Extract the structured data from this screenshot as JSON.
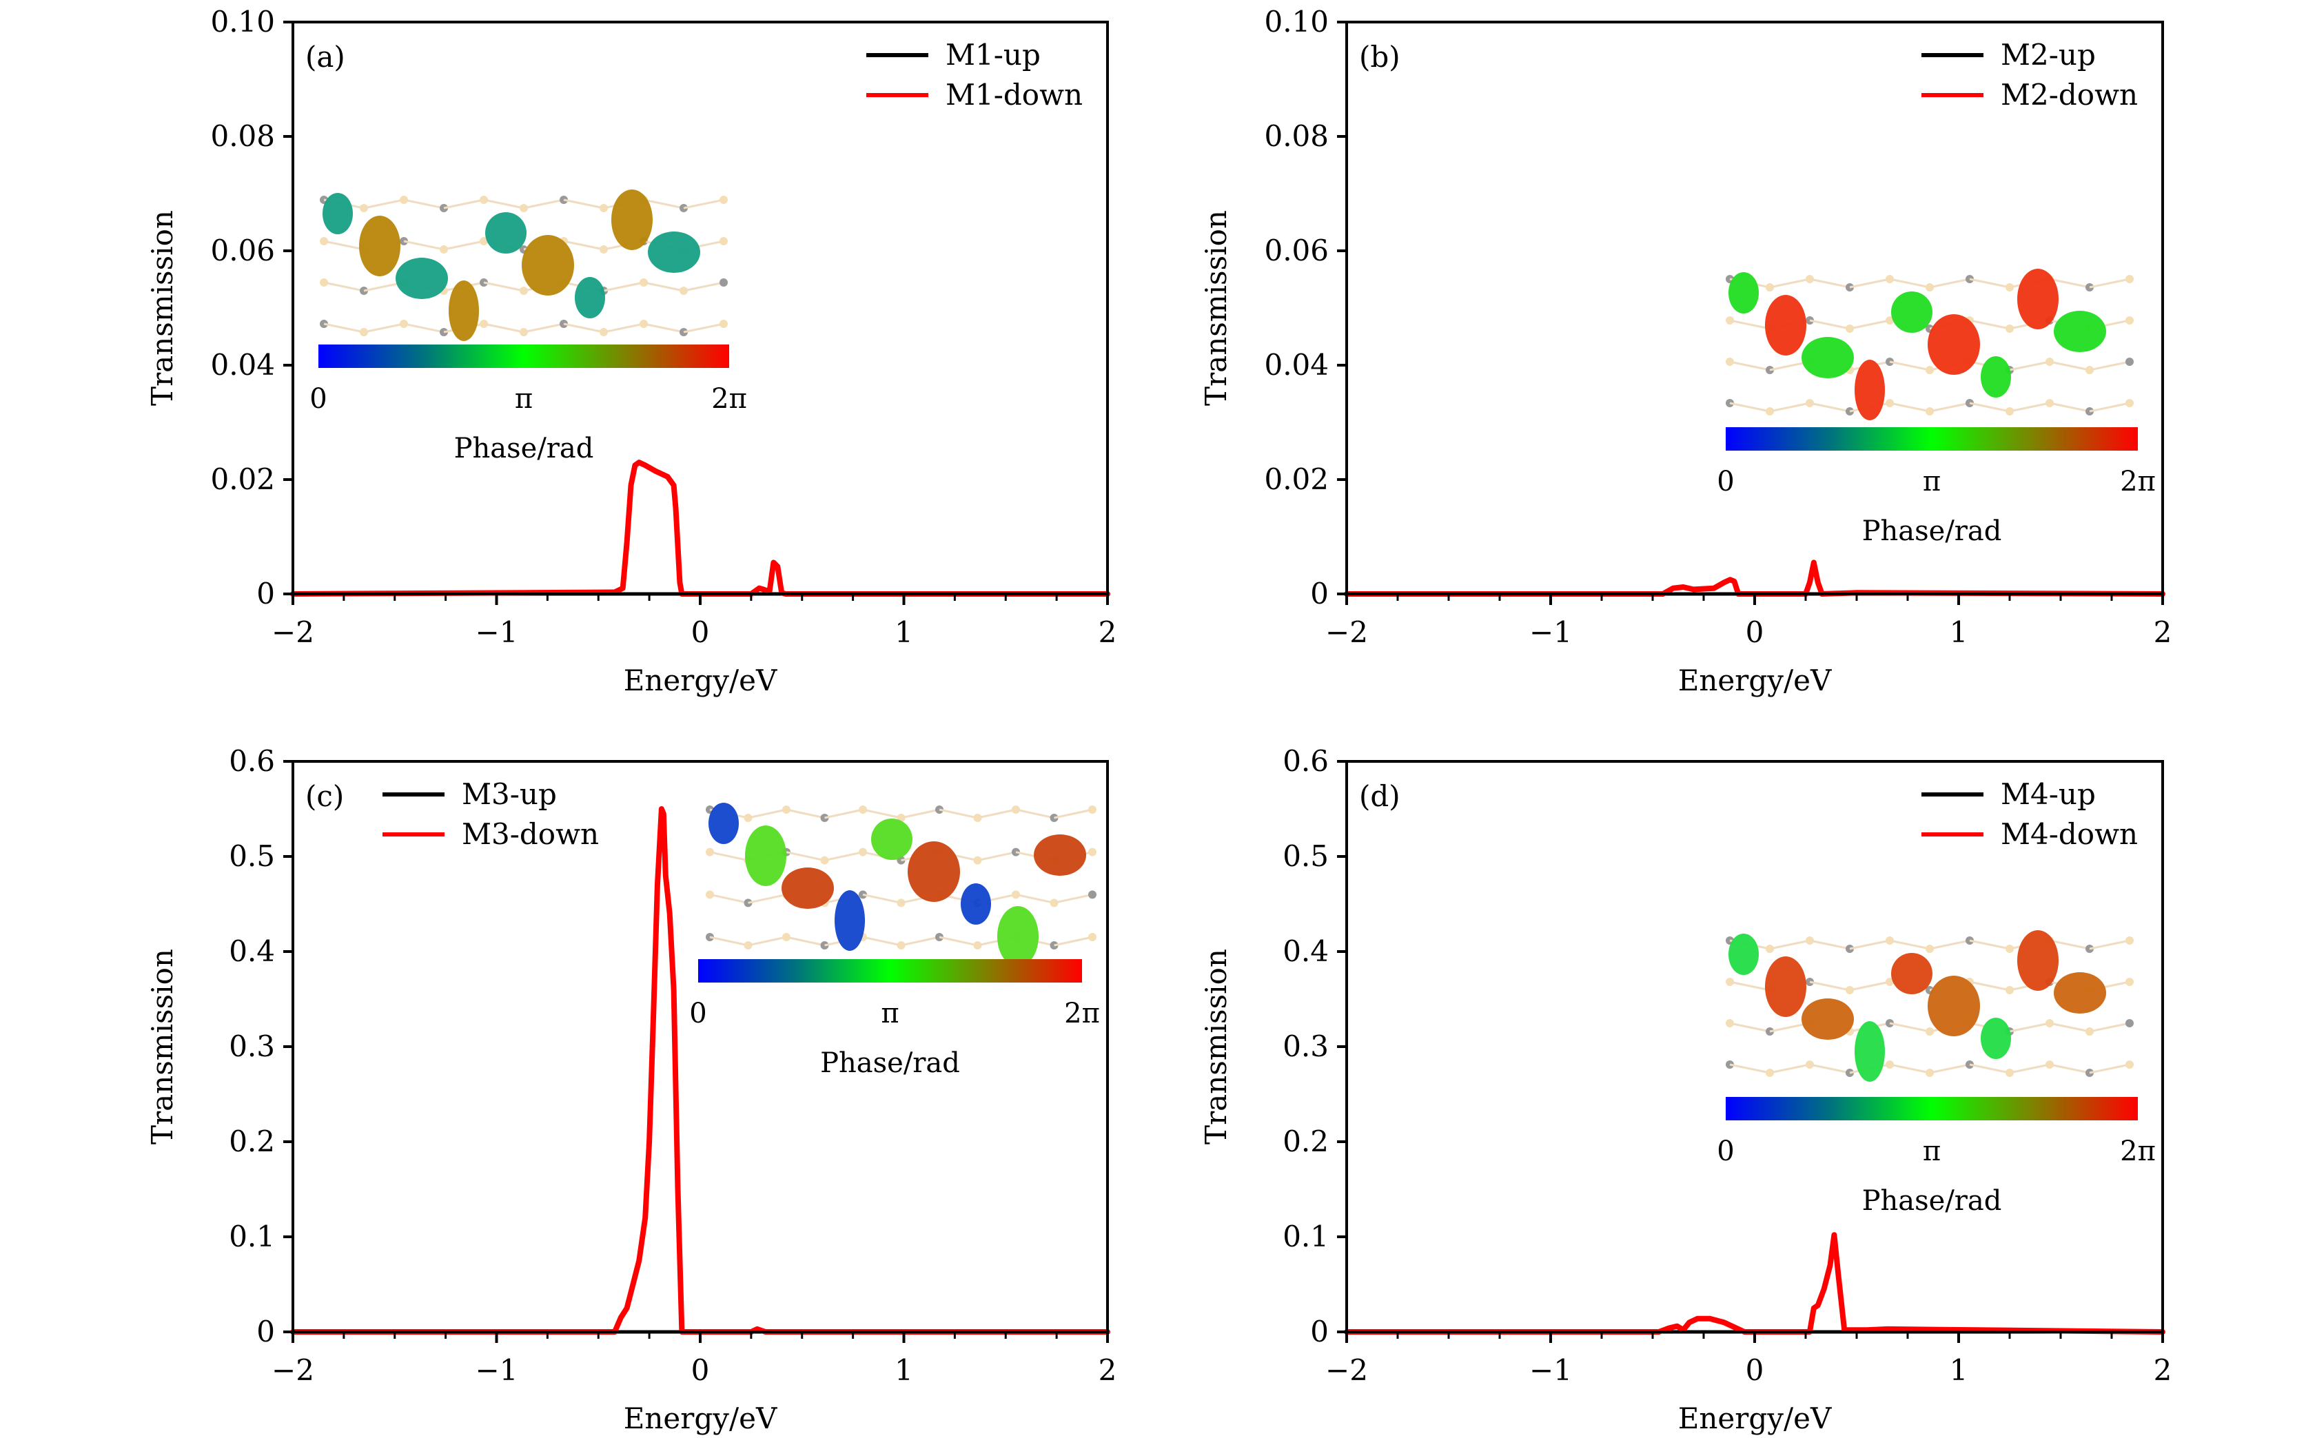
{
  "figure": {
    "panels_count": 4
  },
  "colors": {
    "up": "#000000",
    "down": "#ff0000",
    "colorbar": [
      "#0000ff",
      "#007070",
      "#00ff00",
      "#808000",
      "#ff0000"
    ]
  },
  "chart_data": [
    {
      "type": "line",
      "panel_label": "(a)",
      "xlabel": "Energy/eV",
      "ylabel": "Transmission",
      "xlim": [
        -2,
        2
      ],
      "ylim": [
        0,
        0.1
      ],
      "xticks": [
        -2,
        -1,
        0,
        1,
        2
      ],
      "xtick_labels": [
        "−2",
        "−1",
        "0",
        "1",
        "2"
      ],
      "yticks": [
        0,
        0.02,
        0.04,
        0.06,
        0.08,
        0.1
      ],
      "ytick_labels": [
        "0",
        "0.02",
        "0.04",
        "0.06",
        "0.08",
        "0.10"
      ],
      "legend": {
        "position": "top-right",
        "entries": [
          "M1-up",
          "M1-down"
        ]
      },
      "inset": {
        "colorbar_labels": [
          "0",
          "π",
          "2π"
        ],
        "colorbar_title": "Phase/rad",
        "position": "upper-left"
      },
      "series": [
        {
          "name": "M1-up",
          "x": [
            -2,
            2
          ],
          "y": [
            0,
            0
          ]
        },
        {
          "name": "M1-down",
          "x": [
            -2,
            -0.42,
            -0.38,
            -0.36,
            -0.34,
            -0.32,
            -0.3,
            -0.27,
            -0.22,
            -0.16,
            -0.13,
            -0.12,
            -0.1,
            -0.09,
            0.25,
            0.29,
            0.31,
            0.34,
            0.36,
            0.38,
            0.4,
            0.42,
            2
          ],
          "y": [
            0,
            0.0003,
            0.001,
            0.009,
            0.019,
            0.0225,
            0.023,
            0.0225,
            0.0215,
            0.0205,
            0.019,
            0.015,
            0.002,
            0,
            0,
            0.001,
            0.0008,
            0.0004,
            0.0055,
            0.0048,
            0.0002,
            0,
            0
          ]
        }
      ]
    },
    {
      "type": "line",
      "panel_label": "(b)",
      "xlabel": "Energy/eV",
      "ylabel": "Transmission",
      "xlim": [
        -2,
        2
      ],
      "ylim": [
        0,
        0.1
      ],
      "xticks": [
        -2,
        -1,
        0,
        1,
        2
      ],
      "xtick_labels": [
        "−2",
        "−1",
        "0",
        "1",
        "2"
      ],
      "yticks": [
        0,
        0.02,
        0.04,
        0.06,
        0.08,
        0.1
      ],
      "ytick_labels": [
        "0",
        "0.02",
        "0.04",
        "0.06",
        "0.08",
        "0.10"
      ],
      "legend": {
        "position": "top-right",
        "entries": [
          "M2-up",
          "M2-down"
        ]
      },
      "inset": {
        "colorbar_labels": [
          "0",
          "π",
          "2π"
        ],
        "colorbar_title": "Phase/rad",
        "position": "right"
      },
      "series": [
        {
          "name": "M2-up",
          "x": [
            -2,
            2
          ],
          "y": [
            0,
            0
          ]
        },
        {
          "name": "M2-down",
          "x": [
            -2,
            -0.45,
            -0.4,
            -0.35,
            -0.3,
            -0.2,
            -0.15,
            -0.12,
            -0.1,
            -0.08,
            0.25,
            0.27,
            0.29,
            0.31,
            0.33,
            0.5,
            2
          ],
          "y": [
            0,
            0,
            0.001,
            0.0012,
            0.0008,
            0.001,
            0.002,
            0.0025,
            0.0022,
            0,
            0,
            0.002,
            0.0055,
            0.002,
            0,
            0.0002,
            0
          ]
        }
      ]
    },
    {
      "type": "line",
      "panel_label": "(c)",
      "xlabel": "Energy/eV",
      "ylabel": "Transmission",
      "xlim": [
        -2,
        2
      ],
      "ylim": [
        0,
        0.6
      ],
      "xticks": [
        -2,
        -1,
        0,
        1,
        2
      ],
      "xtick_labels": [
        "−2",
        "−1",
        "0",
        "1",
        "2"
      ],
      "yticks": [
        0,
        0.1,
        0.2,
        0.3,
        0.4,
        0.5,
        0.6
      ],
      "ytick_labels": [
        "0",
        "0.1",
        "0.2",
        "0.3",
        "0.4",
        "0.5",
        "0.6"
      ],
      "legend": {
        "position": "top-left",
        "entries": [
          "M3-up",
          "M3-down"
        ]
      },
      "inset": {
        "colorbar_labels": [
          "0",
          "π",
          "2π"
        ],
        "colorbar_title": "Phase/rad",
        "position": "upper-right"
      },
      "series": [
        {
          "name": "M3-up",
          "x": [
            -2,
            2
          ],
          "y": [
            0,
            0
          ]
        },
        {
          "name": "M3-down",
          "x": [
            -2,
            -0.42,
            -0.39,
            -0.36,
            -0.33,
            -0.3,
            -0.27,
            -0.25,
            -0.23,
            -0.21,
            -0.19,
            -0.18,
            -0.17,
            -0.15,
            -0.13,
            -0.11,
            -0.09,
            -0.08,
            0.25,
            0.28,
            0.32,
            2
          ],
          "y": [
            0,
            0,
            0.015,
            0.025,
            0.05,
            0.075,
            0.12,
            0.2,
            0.33,
            0.47,
            0.55,
            0.545,
            0.48,
            0.44,
            0.36,
            0.15,
            0,
            0,
            0,
            0.003,
            0,
            0
          ]
        }
      ]
    },
    {
      "type": "line",
      "panel_label": "(d)",
      "xlabel": "Energy/eV",
      "ylabel": "Transmission",
      "xlim": [
        -2,
        2
      ],
      "ylim": [
        0,
        0.6
      ],
      "xticks": [
        -2,
        -1,
        0,
        1,
        2
      ],
      "xtick_labels": [
        "−2",
        "−1",
        "0",
        "1",
        "2"
      ],
      "yticks": [
        0,
        0.1,
        0.2,
        0.3,
        0.4,
        0.5,
        0.6
      ],
      "ytick_labels": [
        "0",
        "0.1",
        "0.2",
        "0.3",
        "0.4",
        "0.5",
        "0.6"
      ],
      "legend": {
        "position": "top-right",
        "entries": [
          "M4-up",
          "M4-down"
        ]
      },
      "inset": {
        "colorbar_labels": [
          "0",
          "π",
          "2π"
        ],
        "colorbar_title": "Phase/rad",
        "position": "right"
      },
      "series": [
        {
          "name": "M4-up",
          "x": [
            -2,
            2
          ],
          "y": [
            0,
            0
          ]
        },
        {
          "name": "M4-down",
          "x": [
            -2,
            -0.47,
            -0.42,
            -0.38,
            -0.35,
            -0.32,
            -0.28,
            -0.22,
            -0.15,
            -0.1,
            -0.05,
            0.27,
            0.29,
            0.31,
            0.34,
            0.37,
            0.39,
            0.41,
            0.44,
            0.55,
            0.65,
            2
          ],
          "y": [
            0,
            0,
            0.004,
            0.006,
            0.002,
            0.01,
            0.014,
            0.014,
            0.01,
            0.005,
            0,
            0,
            0.025,
            0.028,
            0.045,
            0.07,
            0.102,
            0.06,
            0.002,
            0.002,
            0.003,
            0
          ]
        }
      ]
    }
  ]
}
